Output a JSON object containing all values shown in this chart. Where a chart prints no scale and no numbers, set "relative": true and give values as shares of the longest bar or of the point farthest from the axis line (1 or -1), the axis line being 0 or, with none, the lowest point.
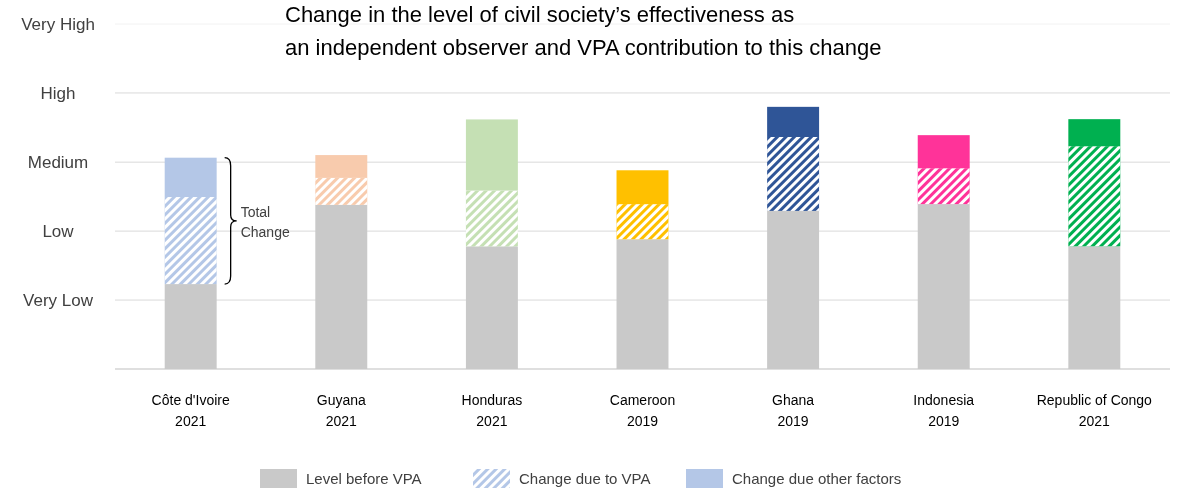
{
  "chart_data": {
    "type": "bar",
    "stacked": true,
    "relative": true,
    "title": "Change in the level of civil society’s effectiveness as\nan independent observer and VPA contribution to this change",
    "categories": [
      "Côte d'Ivoire\n2021",
      "Guyana\n2021",
      "Honduras\n2021",
      "Cameroon\n2019",
      "Ghana\n2019",
      "Indonesia\n2019",
      "Republic of Congo\n2021"
    ],
    "legend": "bottom",
    "ref_lines": [
      {
        "axis": "y",
        "value": 0.263,
        "label": "Very Low",
        "color": "#d9d9d9"
      },
      {
        "axis": "y",
        "value": 0.526,
        "label": "Low",
        "color": "#d9d9d9"
      },
      {
        "axis": "y",
        "value": 0.789,
        "label": "Medium",
        "color": "#d9d9d9"
      },
      {
        "axis": "y",
        "value": 1.053,
        "label": "High",
        "color": "#d9d9d9"
      },
      {
        "axis": "y",
        "value": 1.316,
        "label": "Very High",
        "color": "#f2f2f2"
      }
    ],
    "series": [
      {
        "name": "Level before VPA",
        "color": "#c9c9c9",
        "values": [
          0.324,
          0.626,
          0.468,
          0.495,
          0.603,
          0.629,
          0.468
        ]
      },
      {
        "name": "Change due to VPA",
        "color": "#b4c7e7",
        "colors": [
          "#b4c7e7",
          "#f8cbad",
          "#c5e0b4",
          "#ffc000",
          "#2f5597",
          "#ff3399",
          "#00b050"
        ],
        "values": [
          0.332,
          0.103,
          0.213,
          0.134,
          0.282,
          0.137,
          0.382
        ]
      },
      {
        "name": "Change due other factors",
        "color": "#b4c7e7",
        "colors": [
          "#b4c7e7",
          "#f8cbad",
          "#c5e0b4",
          "#ffc000",
          "#2f5597",
          "#ff3399",
          "#00b050"
        ],
        "values": [
          0.15,
          0.087,
          0.271,
          0.129,
          0.115,
          0.126,
          0.103
        ]
      }
    ],
    "annotations": [
      "Total Change"
    ]
  }
}
